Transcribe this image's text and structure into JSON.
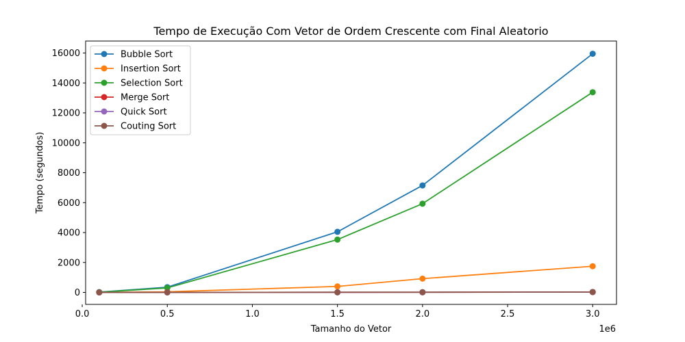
{
  "chart_data": {
    "type": "line",
    "title": "Tempo de Execução Com Vetor de Ordem Crescente com Final Aleatorio",
    "xlabel": "Tamanho do Vetor",
    "ylabel": "Tempo (segundos)",
    "x_offset_label": "1e6",
    "x": [
      100000,
      500000,
      1500000,
      2000000,
      3000000
    ],
    "xlim": [
      20000,
      3140000
    ],
    "ylim": [
      -800,
      16800
    ],
    "x_ticks": [
      0,
      500000,
      1000000,
      1500000,
      2000000,
      2500000,
      3000000
    ],
    "x_tick_labels": [
      "0.0",
      "0.5",
      "1.0",
      "1.5",
      "2.0",
      "2.5",
      "3.0"
    ],
    "y_ticks": [
      0,
      2000,
      4000,
      6000,
      8000,
      10000,
      12000,
      14000,
      16000
    ],
    "y_tick_labels": [
      "0",
      "2000",
      "4000",
      "6000",
      "8000",
      "10000",
      "12000",
      "14000",
      "16000"
    ],
    "grid": false,
    "legend_position": "top-left",
    "series": [
      {
        "name": "Bubble Sort",
        "color": "#1f77b4",
        "values": [
          20,
          350,
          4050,
          7150,
          15950
        ]
      },
      {
        "name": "Insertion Sort",
        "color": "#ff7f0e",
        "values": [
          5,
          40,
          400,
          920,
          1750
        ]
      },
      {
        "name": "Selection Sort",
        "color": "#2ca02c",
        "values": [
          15,
          300,
          3530,
          5930,
          13380
        ]
      },
      {
        "name": "Merge Sort",
        "color": "#d62728",
        "values": [
          1,
          3,
          8,
          10,
          20
        ]
      },
      {
        "name": "Quick Sort",
        "color": "#9467bd",
        "values": [
          1,
          3,
          8,
          10,
          25
        ]
      },
      {
        "name": "Couting Sort",
        "color": "#8c564b",
        "values": [
          1,
          3,
          10,
          12,
          30
        ]
      }
    ]
  }
}
